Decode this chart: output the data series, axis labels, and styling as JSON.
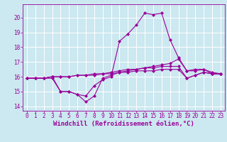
{
  "x": [
    0,
    1,
    2,
    3,
    4,
    5,
    6,
    7,
    8,
    9,
    10,
    11,
    12,
    13,
    14,
    15,
    16,
    17,
    18,
    19,
    20,
    21,
    22,
    23
  ],
  "line1": [
    15.9,
    15.9,
    15.9,
    16.0,
    15.0,
    15.0,
    14.8,
    14.7,
    15.4,
    15.8,
    16.0,
    18.4,
    18.9,
    19.5,
    20.3,
    20.2,
    20.3,
    18.5,
    17.3,
    16.4,
    16.4,
    16.5,
    16.2,
    16.2
  ],
  "line2": [
    15.9,
    15.9,
    15.9,
    15.9,
    15.0,
    15.0,
    14.8,
    14.3,
    14.7,
    15.9,
    16.1,
    16.3,
    16.4,
    16.5,
    16.6,
    16.7,
    16.8,
    16.9,
    17.2,
    16.4,
    16.5,
    16.5,
    16.3,
    16.2
  ],
  "line3": [
    15.9,
    15.9,
    15.9,
    16.0,
    16.0,
    16.0,
    16.1,
    16.1,
    16.2,
    16.2,
    16.3,
    16.4,
    16.5,
    16.5,
    16.6,
    16.6,
    16.7,
    16.7,
    16.7,
    15.9,
    16.1,
    16.3,
    16.2,
    16.2
  ],
  "line4": [
    15.9,
    15.9,
    15.9,
    16.0,
    16.0,
    16.0,
    16.1,
    16.1,
    16.1,
    16.2,
    16.2,
    16.3,
    16.3,
    16.4,
    16.4,
    16.4,
    16.5,
    16.5,
    16.5,
    15.9,
    16.1,
    16.3,
    16.2,
    16.2
  ],
  "color": "#990099",
  "bg_color": "#cce8f0",
  "grid_color": "#ffffff",
  "ylabel_vals": [
    14,
    15,
    16,
    17,
    18,
    19,
    20
  ],
  "ylim": [
    13.7,
    20.9
  ],
  "xlim": [
    -0.5,
    23.5
  ],
  "xlabel": "Windchill (Refroidissement éolien,°C)",
  "tick_fontsize": 5.5,
  "xlabel_fontsize": 6.5
}
